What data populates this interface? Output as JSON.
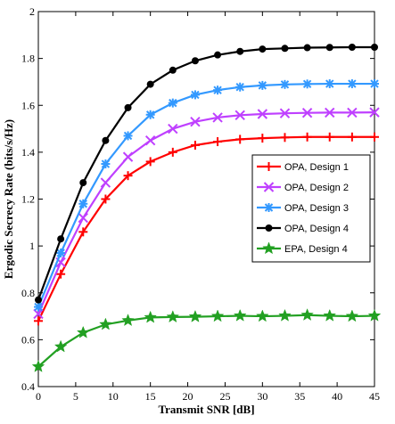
{
  "chart_data": {
    "type": "line",
    "title": "",
    "xlabel": "Transmit SNR [dB]",
    "ylabel": "Ergodic Secrecy Rate (bits/s/Hz)",
    "xlim": [
      0,
      45
    ],
    "ylim": [
      0.4,
      2.0
    ],
    "xticks": [
      0,
      5,
      10,
      15,
      20,
      25,
      30,
      35,
      40,
      45
    ],
    "yticks": [
      0.4,
      0.6,
      0.8,
      1.0,
      1.2,
      1.4,
      1.6,
      1.8,
      2.0
    ],
    "xtick_labels": [
      "0",
      "5",
      "10",
      "15",
      "20",
      "25",
      "30",
      "35",
      "40",
      "45"
    ],
    "ytick_labels": [
      "0.4",
      "0.6",
      "0.8",
      "1",
      "1.2",
      "1.4",
      "1.6",
      "1.8",
      "2"
    ],
    "grid": false,
    "legend_position": "right",
    "x": [
      0,
      3,
      6,
      9,
      12,
      15,
      18,
      21,
      24,
      27,
      30,
      33,
      36,
      39,
      42,
      45
    ],
    "series": [
      {
        "name": "OPA, Design 1",
        "color": "#ff0000",
        "marker": "plus",
        "values": [
          0.68,
          0.88,
          1.06,
          1.2,
          1.3,
          1.36,
          1.4,
          1.43,
          1.445,
          1.455,
          1.46,
          1.463,
          1.465,
          1.465,
          1.465,
          1.465
        ]
      },
      {
        "name": "OPA, Design 2",
        "color": "#bf40ff",
        "marker": "x",
        "values": [
          0.71,
          0.93,
          1.12,
          1.27,
          1.38,
          1.45,
          1.5,
          1.53,
          1.548,
          1.558,
          1.563,
          1.566,
          1.568,
          1.569,
          1.569,
          1.57
        ]
      },
      {
        "name": "OPA, Design 3",
        "color": "#3399ff",
        "marker": "asterisk",
        "values": [
          0.74,
          0.97,
          1.18,
          1.35,
          1.47,
          1.56,
          1.61,
          1.645,
          1.665,
          1.678,
          1.685,
          1.689,
          1.691,
          1.692,
          1.692,
          1.692
        ]
      },
      {
        "name": "OPA, Design 4",
        "color": "#000000",
        "marker": "circle",
        "values": [
          0.77,
          1.03,
          1.27,
          1.45,
          1.59,
          1.69,
          1.75,
          1.79,
          1.815,
          1.83,
          1.84,
          1.843,
          1.846,
          1.847,
          1.848,
          1.848
        ]
      },
      {
        "name": "EPA, Design 4",
        "color": "#22a022",
        "marker": "star",
        "values": [
          0.485,
          0.57,
          0.63,
          0.665,
          0.682,
          0.695,
          0.697,
          0.698,
          0.7,
          0.702,
          0.7,
          0.702,
          0.705,
          0.702,
          0.7,
          0.702
        ]
      }
    ]
  }
}
